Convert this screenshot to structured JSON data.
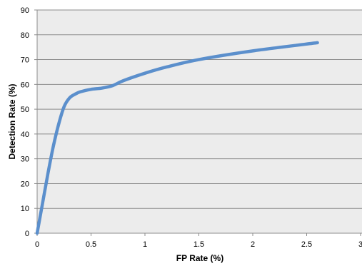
{
  "chart_data": {
    "type": "line",
    "title": "",
    "xlabel": "FP Rate (%)",
    "ylabel": "Detection Rate (%)",
    "xlim": [
      0,
      3
    ],
    "ylim": [
      0,
      90
    ],
    "x_ticks": [
      0,
      0.5,
      1,
      1.5,
      2,
      2.5,
      3
    ],
    "x_tick_labels": [
      "0",
      "0.5",
      "1",
      "1.5",
      "2",
      "2.5",
      "3"
    ],
    "y_ticks": [
      0,
      10,
      20,
      30,
      40,
      50,
      60,
      70,
      80,
      90
    ],
    "y_tick_labels": [
      "0",
      "10",
      "20",
      "30",
      "40",
      "50",
      "60",
      "70",
      "80",
      "90"
    ],
    "grid": "horizontal",
    "legend": "none",
    "colors": {
      "line": "#5b8fcc",
      "plot_background": "#ececec",
      "gridline": "#8c8c8c"
    },
    "series": [
      {
        "x": [
          0,
          0.05,
          0.1,
          0.15,
          0.2,
          0.25,
          0.3,
          0.35,
          0.4,
          0.5,
          0.6,
          0.7,
          0.8,
          1.0,
          1.2,
          1.5,
          2.0,
          2.6
        ],
        "y": [
          0,
          12,
          24,
          35,
          44,
          51,
          54.5,
          56,
          57,
          58,
          58.5,
          59.5,
          61.5,
          64.5,
          67,
          70,
          73.5,
          76.8
        ]
      }
    ]
  }
}
